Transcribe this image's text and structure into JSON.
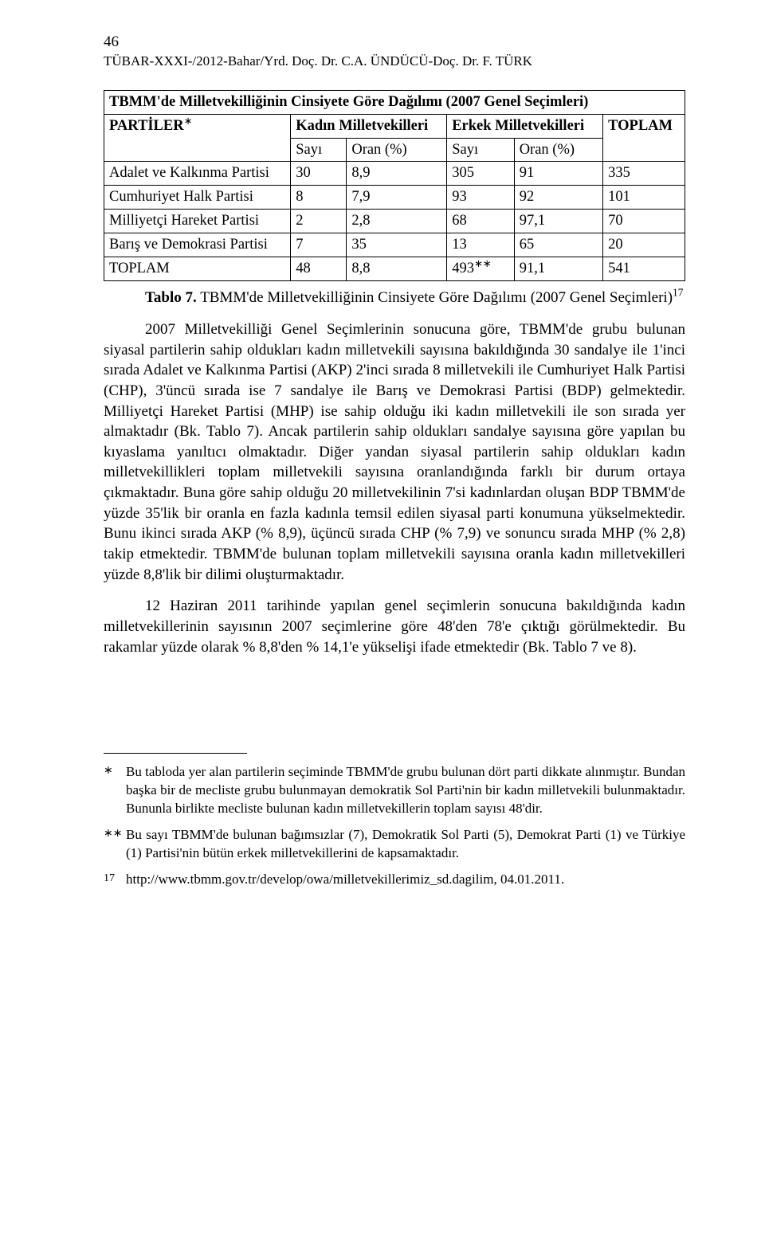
{
  "page_number": "46",
  "running_head": "TÜBAR-XXXI-/2012-Bahar/Yrd. Doç. Dr. C.A. ÜNDÜCÜ-Doç. Dr. F. TÜRK",
  "table": {
    "title": "TBMM'de Milletvekilliğinin Cinsiyete Göre Dağılımı (2007 Genel Seçimleri)",
    "col_group": {
      "parties": "PARTİLER",
      "parties_sup": "∗",
      "female": "Kadın Milletvekilleri",
      "male": "Erkek Milletvekilleri",
      "total": "TOPLAM"
    },
    "sub_head": {
      "count1": "Sayı",
      "pct1": "Oran (%)",
      "count2": "Sayı",
      "pct2": "Oran (%)"
    },
    "rows": [
      {
        "name": "Adalet ve Kalkınma Partisi",
        "c1": "30",
        "p1": "8,9",
        "c2": "305",
        "p2": "91",
        "t": "335"
      },
      {
        "name": "Cumhuriyet Halk Partisi",
        "c1": "8",
        "p1": "7,9",
        "c2": "93",
        "p2": "92",
        "t": "101"
      },
      {
        "name": "Milliyetçi Hareket Partisi",
        "c1": "2",
        "p1": "2,8",
        "c2": "68",
        "p2": "97,1",
        "t": "70"
      },
      {
        "name": "Barış ve Demokrasi Partisi",
        "c1": "7",
        "p1": "35",
        "c2": "13",
        "p2": "65",
        "t": "20"
      }
    ],
    "total_row": {
      "name": "TOPLAM",
      "c1": "48",
      "p1": "8,8",
      "c2": "493",
      "c2_sup": "∗∗",
      "p2": "91,1",
      "t": "541"
    }
  },
  "caption_label": "Tablo 7.",
  "caption_text": " TBMM'de Milletvekilliğinin Cinsiyete Göre Dağılımı (2007 Genel Seçimleri)",
  "caption_sup": "17",
  "para1": "2007 Milletvekilliği Genel Seçimlerinin sonucuna göre, TBMM'de grubu bulunan siyasal partilerin sahip oldukları kadın milletvekili sayısına bakıldığında 30 sandalye ile 1'inci sırada Adalet ve Kalkınma Partisi (AKP) 2'inci sırada 8 milletvekili ile Cumhuriyet Halk Partisi (CHP), 3'üncü sırada ise 7 sandalye ile Barış ve Demokrasi Partisi (BDP) gelmektedir. Milliyetçi Hareket Partisi (MHP) ise sahip olduğu iki kadın milletvekili ile son sırada yer almaktadır (Bk. Tablo 7). Ancak partilerin sahip oldukları sandalye sayısına göre yapılan bu kıyaslama yanıltıcı olmaktadır. Diğer yandan siyasal partilerin sahip oldukları kadın milletvekillikleri toplam milletvekili sayısına oranlandığında farklı bir durum ortaya çıkmaktadır. Buna göre sahip olduğu 20 milletvekilinin 7'si kadınlardan oluşan BDP TBMM'de yüzde 35'lik bir oranla en fazla kadınla temsil edilen siyasal parti konumuna yükselmektedir. Bunu ikinci sırada AKP (% 8,9), üçüncü sırada CHP (% 7,9) ve sonuncu sırada MHP (% 2,8) takip etmektedir. TBMM'de bulunan toplam milletvekili sayısına oranla kadın milletvekilleri yüzde 8,8'lik bir dilimi oluşturmaktadır.",
  "para2": "12 Haziran 2011 tarihinde yapılan genel seçimlerin sonucuna bakıldığında kadın milletvekillerinin sayısının 2007 seçimlerine göre 48'den 78'e çıktığı görülmektedir. Bu rakamlar yüzde olarak % 8,8'den % 14,1'e yükselişi ifade etmektedir (Bk. Tablo 7 ve 8).",
  "footnotes": {
    "fn1_mark": "∗",
    "fn1_text": "Bu tabloda yer alan partilerin seçiminde TBMM'de grubu bulunan dört parti dikkate alınmıştır. Bundan başka bir de mecliste grubu bulunmayan demokratik Sol Parti'nin bir kadın milletvekili bulunmaktadır. Bununla birlikte mecliste bulunan kadın milletvekillerin toplam sayısı 48'dir.",
    "fn2_mark": "∗∗",
    "fn2_text": "Bu sayı TBMM'de bulunan bağımsızlar (7), Demokratik Sol Parti (5), Demokrat Parti (1) ve Türkiye (1) Partisi'nin bütün erkek milletvekillerini de kapsamaktadır.",
    "fn3_mark": "17",
    "fn3_text": "http://www.tbmm.gov.tr/develop/owa/milletvekillerimiz_sd.dagilim, 04.01.2011."
  }
}
